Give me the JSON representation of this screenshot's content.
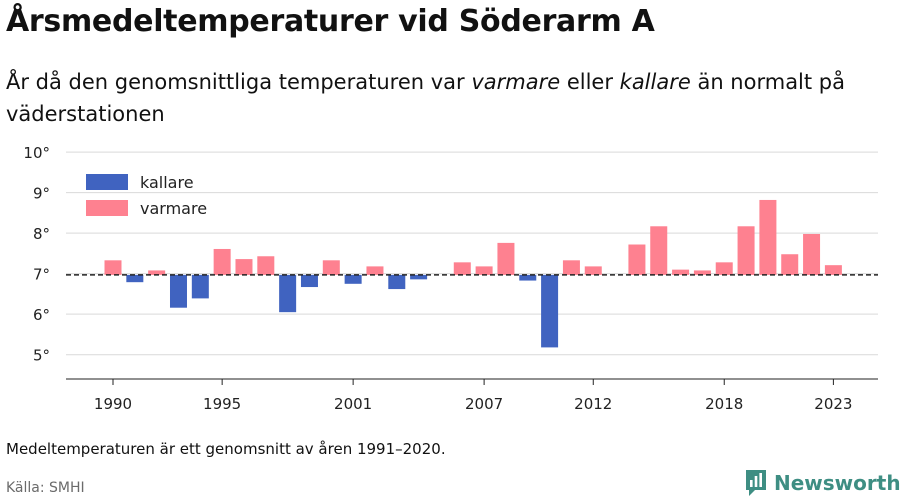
{
  "title": "Årsmedeltemperaturer vid Söderarm A",
  "subtitle": {
    "part1": "År då den genomsnittliga temperaturen var ",
    "warm": "varmare",
    "part2": " eller ",
    "cold": "kallare",
    "part3": " än normalt på väderstationen"
  },
  "note": "Medeltemperaturen är ett genomsnitt av åren 1991–2020.",
  "source": "Källa: SMHI",
  "brand": {
    "name": "Newsworthy",
    "icon": "newsworthy-logo-icon",
    "color": "#3e8e83"
  },
  "colors": {
    "kallare": "#4063c0",
    "varmare": "#fe8190",
    "baseline": "#222222",
    "grid": "#d9d9d9"
  },
  "chart_data": {
    "type": "bar",
    "baseline": 6.97,
    "ylim": [
      4.4,
      10.3
    ],
    "yticks": [
      5,
      6,
      7,
      8,
      9,
      10
    ],
    "ytick_labels": [
      "5°",
      "6°",
      "7°",
      "8°",
      "9°",
      "10°"
    ],
    "xticks": [
      1990,
      1995,
      2001,
      2007,
      2012,
      2018,
      2023
    ],
    "xtick_labels": [
      "1990",
      "1995",
      "2001",
      "2007",
      "2012",
      "2018",
      "2023"
    ],
    "legend": [
      {
        "key": "kallare",
        "label": "kallare"
      },
      {
        "key": "varmare",
        "label": "varmare"
      }
    ],
    "legend_position": "top-left",
    "grid": true,
    "years": [
      1990,
      1991,
      1992,
      1993,
      1994,
      1995,
      1996,
      1997,
      1998,
      1999,
      2000,
      2001,
      2002,
      2003,
      2004,
      2005,
      2006,
      2007,
      2008,
      2009,
      2010,
      2011,
      2012,
      2013,
      2014,
      2015,
      2016,
      2017,
      2018,
      2019,
      2020,
      2021,
      2022,
      2023
    ],
    "values": [
      7.33,
      6.79,
      7.08,
      6.16,
      6.39,
      7.61,
      7.36,
      7.43,
      6.05,
      6.67,
      7.33,
      6.75,
      7.18,
      6.62,
      6.86,
      null,
      7.28,
      7.18,
      7.76,
      6.83,
      5.18,
      7.33,
      7.18,
      null,
      7.72,
      8.17,
      7.1,
      7.08,
      7.28,
      8.17,
      8.82,
      7.48,
      7.98,
      7.21
    ]
  }
}
